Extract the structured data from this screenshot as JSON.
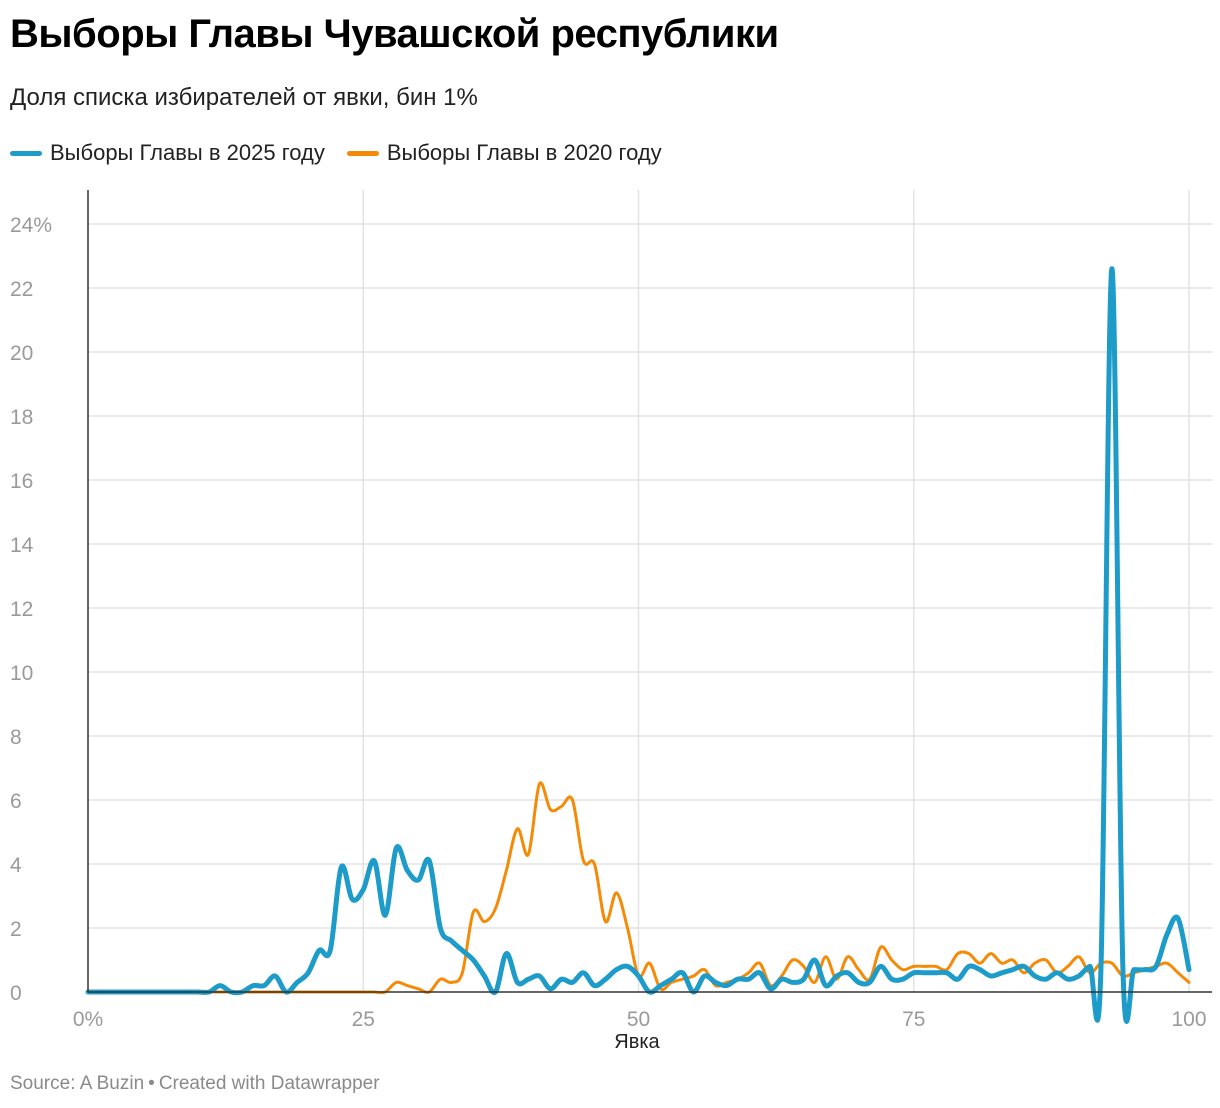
{
  "header": {
    "title": "Выборы Главы Чувашской республики",
    "subtitle": "Доля списка избирателей от явки, бин 1%"
  },
  "footer": {
    "source": "Source: A Buzin",
    "separator": "•",
    "credit": "Created with Datawrapper"
  },
  "chart_data": {
    "type": "line",
    "title": "Выборы Главы Чувашской республики",
    "subtitle": "Доля списка избирателей от явки, бин 1%",
    "xlabel": "Явка",
    "ylabel": "",
    "xlim": [
      0,
      100
    ],
    "ylim": [
      0,
      24
    ],
    "x_ticks": [
      0,
      25,
      50,
      75,
      100
    ],
    "x_tick_labels": [
      "0%",
      "25",
      "50",
      "75",
      "100"
    ],
    "y_ticks": [
      0,
      2,
      4,
      6,
      8,
      10,
      12,
      14,
      16,
      18,
      20,
      22,
      24
    ],
    "y_tick_labels": [
      "0",
      "2",
      "4",
      "6",
      "8",
      "10",
      "12",
      "14",
      "16",
      "18",
      "20",
      "22",
      "24%"
    ],
    "grid": true,
    "legend_position": "top-left",
    "x": [
      0,
      1,
      2,
      3,
      4,
      5,
      6,
      7,
      8,
      9,
      10,
      11,
      12,
      13,
      14,
      15,
      16,
      17,
      18,
      19,
      20,
      21,
      22,
      23,
      24,
      25,
      26,
      27,
      28,
      29,
      30,
      31,
      32,
      33,
      34,
      35,
      36,
      37,
      38,
      39,
      40,
      41,
      42,
      43,
      44,
      45,
      46,
      47,
      48,
      49,
      50,
      51,
      52,
      53,
      54,
      55,
      56,
      57,
      58,
      59,
      60,
      61,
      62,
      63,
      64,
      65,
      66,
      67,
      68,
      69,
      70,
      71,
      72,
      73,
      74,
      75,
      76,
      77,
      78,
      79,
      80,
      81,
      82,
      83,
      84,
      85,
      86,
      87,
      88,
      89,
      90,
      91,
      92,
      93,
      94,
      95,
      96,
      97,
      98,
      99,
      100
    ],
    "series": [
      {
        "name": "Выборы Главы в 2025 году",
        "color": "#1d9bc9",
        "values": [
          0,
          0,
          0,
          0,
          0,
          0,
          0,
          0,
          0,
          0,
          0,
          0,
          0.2,
          0,
          0,
          0.2,
          0.2,
          0.5,
          0,
          0.3,
          0.6,
          1.3,
          1.3,
          3.9,
          2.9,
          3.2,
          4.1,
          2.4,
          4.5,
          3.8,
          3.5,
          4.1,
          2.0,
          1.6,
          1.3,
          1.0,
          0.5,
          0,
          1.2,
          0.3,
          0.4,
          0.5,
          0.1,
          0.4,
          0.3,
          0.6,
          0.2,
          0.4,
          0.7,
          0.8,
          0.5,
          0,
          0.2,
          0.4,
          0.6,
          0,
          0.5,
          0.3,
          0.2,
          0.4,
          0.4,
          0.6,
          0.1,
          0.4,
          0.3,
          0.4,
          1.0,
          0.2,
          0.5,
          0.6,
          0.3,
          0.3,
          0.8,
          0.4,
          0.4,
          0.6,
          0.6,
          0.6,
          0.6,
          0.4,
          0.8,
          0.7,
          0.5,
          0.6,
          0.7,
          0.8,
          0.5,
          0.4,
          0.6,
          0.4,
          0.5,
          0.8,
          0.7,
          22.6,
          0.7,
          0.7,
          0.7,
          0.8,
          1.8,
          2.3,
          0.7
        ]
      },
      {
        "name": "Выборы Главы в 2020 году",
        "color": "#f58a07",
        "values": [
          0,
          0,
          0,
          0,
          0,
          0,
          0,
          0,
          0,
          0,
          0,
          0,
          0,
          0,
          0,
          0,
          0,
          0,
          0,
          0,
          0,
          0,
          0,
          0,
          0,
          0,
          0,
          0,
          0.3,
          0.2,
          0.1,
          0,
          0.4,
          0.3,
          0.6,
          2.5,
          2.2,
          2.6,
          3.8,
          5.1,
          4.3,
          6.5,
          5.7,
          5.8,
          6.0,
          4.1,
          4.0,
          2.2,
          3.1,
          2.0,
          0.5,
          0.9,
          0.1,
          0.3,
          0.4,
          0.5,
          0.7,
          0.2,
          0.3,
          0.4,
          0.6,
          0.9,
          0.2,
          0.5,
          1.0,
          0.8,
          0.3,
          1.1,
          0.4,
          1.1,
          0.7,
          0.4,
          1.4,
          1.0,
          0.7,
          0.8,
          0.8,
          0.8,
          0.7,
          1.2,
          1.2,
          0.9,
          1.2,
          0.9,
          1.0,
          0.6,
          0.9,
          1.0,
          0.6,
          0.8,
          1.1,
          0.6,
          0.9,
          0.9,
          0.5,
          0.6,
          0.7,
          0.8,
          0.9,
          0.6,
          0.3
        ]
      }
    ]
  }
}
